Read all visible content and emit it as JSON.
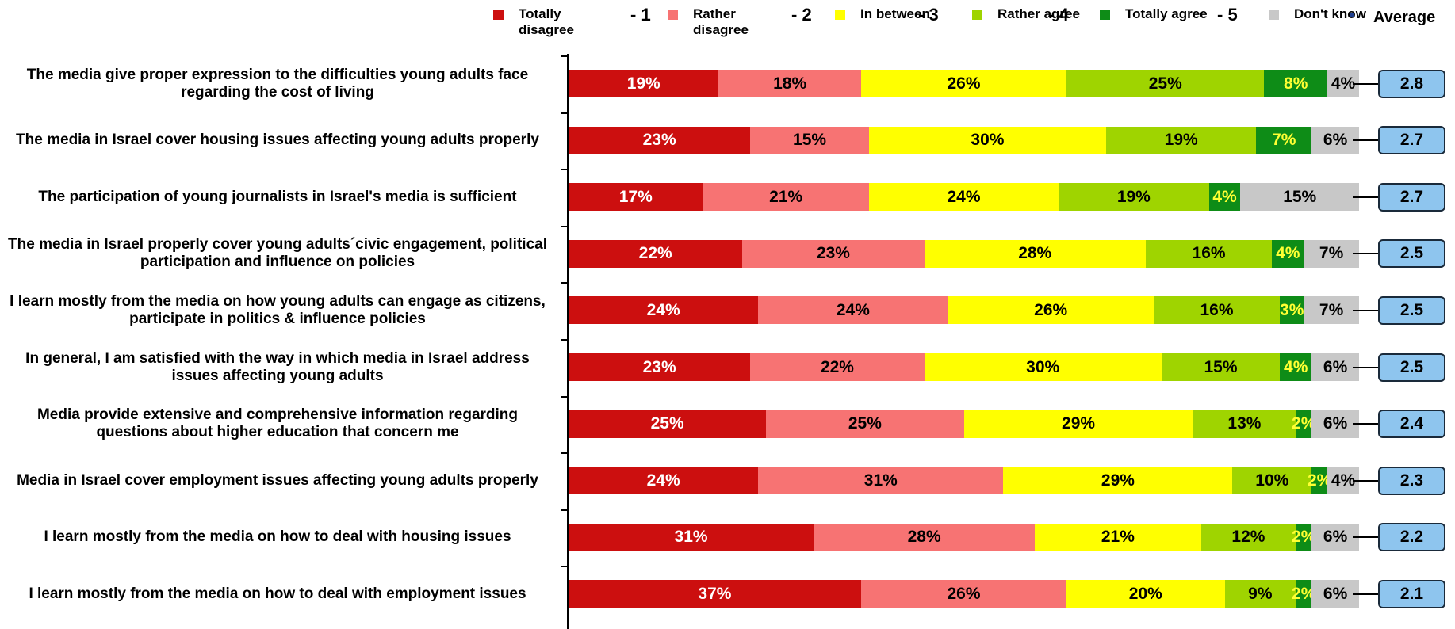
{
  "chart_data": {
    "type": "stacked-bar-horizontal",
    "categories": [
      "The media give proper expression to the difficulties  young adults face regarding the cost of living",
      "The media in Israel cover housing issues affecting young adults properly",
      "The participation of young journalists in Israel's media is sufficient",
      "The media in Israel properly cover young adults´civic engagement, political participation and influence on policies",
      "I learn mostly from the media on how young adults can engage as citizens, participate in politics & influence policies",
      "In general, I am satisfied with the way in which media in Israel address issues affecting young adults",
      "Media provide extensive and comprehensive information regarding questions about higher education that concern me",
      "Media in Israel cover employment issues affecting young adults properly",
      "I learn mostly from the media on how to deal with housing issues",
      "I learn mostly from the media on how to deal with employment issues"
    ],
    "xlim": [
      0,
      100
    ],
    "series": [
      {
        "name": "Totally disagree",
        "code": "- 1",
        "color": "#cc0f0f",
        "label_color": "#ffffff",
        "values": [
          19,
          23,
          17,
          22,
          24,
          23,
          25,
          24,
          31,
          37
        ],
        "value_labels": [
          "19%",
          "23%",
          "17%",
          "22%",
          "24%",
          "23%",
          "25%",
          "24%",
          "31%",
          "37%"
        ]
      },
      {
        "name": "Rather disagree",
        "code": "- 2",
        "color": "#f77373",
        "label_color": "#000000",
        "values": [
          18,
          15,
          21,
          23,
          24,
          22,
          25,
          31,
          28,
          26
        ],
        "value_labels": [
          "18%",
          "15%",
          "21%",
          "23%",
          "24%",
          "22%",
          "25%",
          "31%",
          "28%",
          "26%"
        ]
      },
      {
        "name": "In between",
        "code": "- 3",
        "color": "#ffff00",
        "label_color": "#000000",
        "values": [
          26,
          30,
          24,
          28,
          26,
          30,
          29,
          29,
          21,
          20
        ],
        "value_labels": [
          "26%",
          "30%",
          "24%",
          "28%",
          "26%",
          "30%",
          "29%",
          "29%",
          "21%",
          "20%"
        ]
      },
      {
        "name": "Rather agree",
        "code": "- 4",
        "color": "#9fd400",
        "label_color": "#000000",
        "values": [
          25,
          19,
          19,
          16,
          16,
          15,
          13,
          10,
          12,
          9
        ],
        "value_labels": [
          "25%",
          "19%",
          "19%",
          "16%",
          "16%",
          "15%",
          "13%",
          "10%",
          "12%",
          "9%"
        ]
      },
      {
        "name": "Totally agree",
        "code": "- 5",
        "color": "#0e8c17",
        "label_color": "#ffff33",
        "values": [
          8,
          7,
          4,
          4,
          3,
          4,
          2,
          2,
          2,
          2
        ],
        "value_labels": [
          "8%",
          "7%",
          "4%",
          "4%",
          "3%",
          "4%",
          "2%",
          "2%",
          "2%",
          "2%"
        ]
      },
      {
        "name": "Don't know",
        "color": "#c8c8c8",
        "label_color": "#000000",
        "values": [
          4,
          6,
          15,
          7,
          7,
          6,
          6,
          4,
          6,
          6
        ],
        "value_labels": [
          "4%",
          "6%",
          "15%",
          "7%",
          "7%",
          "6%",
          "6%",
          "4%",
          "6%",
          "6%"
        ]
      }
    ],
    "average": {
      "name": "Average",
      "color": "#8ec5ee",
      "values": [
        2.8,
        2.7,
        2.7,
        2.5,
        2.5,
        2.5,
        2.4,
        2.3,
        2.2,
        2.1
      ]
    }
  }
}
